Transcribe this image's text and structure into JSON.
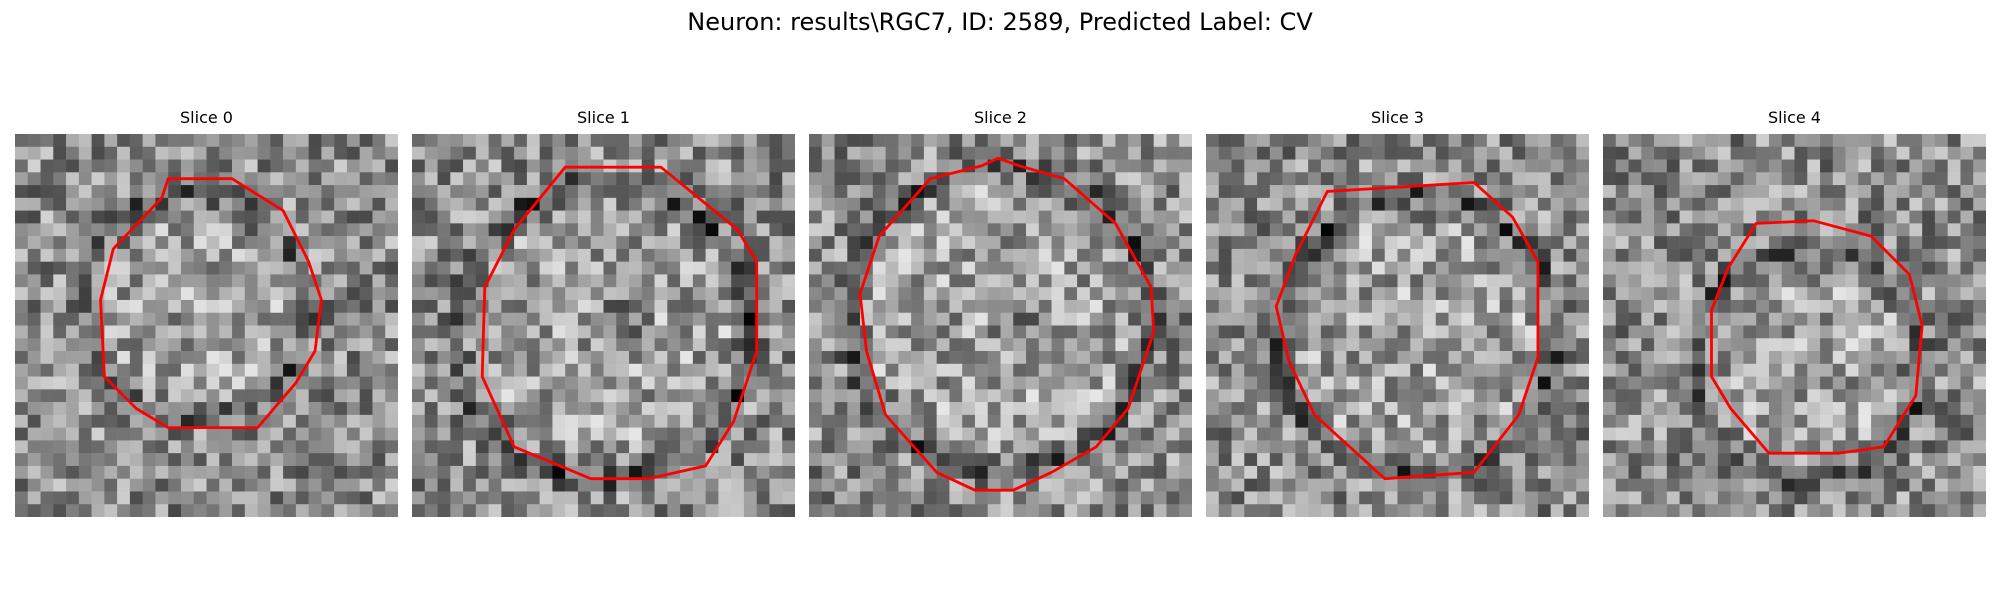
{
  "figure": {
    "title": "Neuron: results\\RGC7, ID: 2589, Predicted Label: CV"
  },
  "colors": {
    "contour": "#ff0000",
    "background": "#ffffff"
  },
  "panels": [
    {
      "title": "Slice 0"
    },
    {
      "title": "Slice 1"
    },
    {
      "title": "Slice 2"
    },
    {
      "title": "Slice 3"
    },
    {
      "title": "Slice 4"
    }
  ]
}
